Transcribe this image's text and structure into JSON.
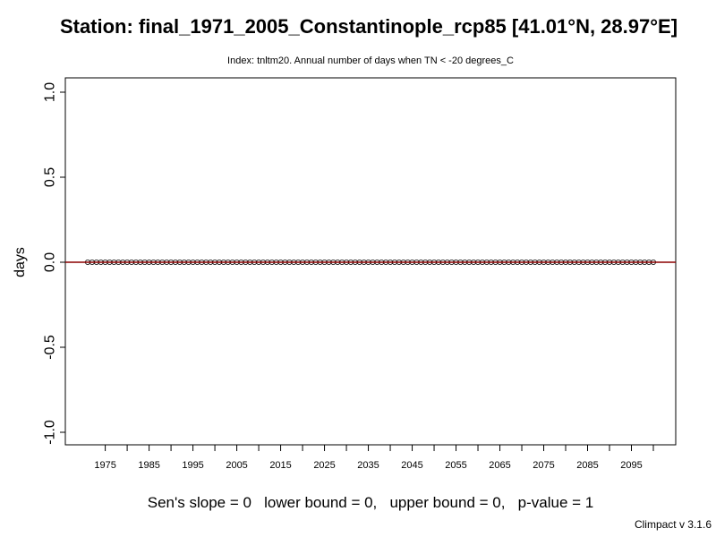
{
  "chart_data": {
    "type": "scatter",
    "title": "Station: final_1971_2005_Constantinople_rcp85 [41.01°N, 28.97°E]",
    "subtitle": "Index: tnltm20. Annual number of days when TN < -20 degrees_C",
    "xlabel": "",
    "ylabel": "days",
    "xlim": [
      1971,
      2100
    ],
    "ylim": [
      -1.0,
      1.0
    ],
    "x_tick_labels": [
      "1975",
      "1985",
      "1995",
      "2005",
      "2015",
      "2025",
      "2035",
      "2045",
      "2055",
      "2065",
      "2075",
      "2085",
      "2095"
    ],
    "y_tick_labels": [
      "-1.0",
      "-0.5",
      "0.0",
      "0.5",
      "1.0"
    ],
    "y_ticks": [
      -1.0,
      -0.5,
      0.0,
      0.5,
      1.0
    ],
    "x_ticks_all": [
      1975,
      1980,
      1985,
      1990,
      1995,
      2000,
      2005,
      2010,
      2015,
      2020,
      2025,
      2030,
      2035,
      2040,
      2045,
      2050,
      2055,
      2060,
      2065,
      2070,
      2075,
      2080,
      2085,
      2090,
      2095,
      2100
    ],
    "series": [
      {
        "x_start": 1971,
        "x_end": 2100,
        "y_constant": 0
      }
    ],
    "trend_line": {
      "color": "#8b0000",
      "slope": 0,
      "intercept": 0
    },
    "grid": false
  },
  "stats_text": "Sen's slope = 0   lower bound = 0,   upper bound = 0,   p-value = 1",
  "footer_text": "Climpact v 3.1.6"
}
